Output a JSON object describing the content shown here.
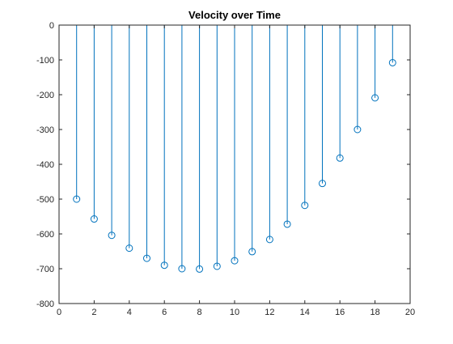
{
  "chart_data": {
    "type": "stem",
    "title": "Velocity over Time",
    "xlabel": "",
    "ylabel": "",
    "xlim": [
      0,
      20
    ],
    "ylim": [
      -800,
      0
    ],
    "xticks": [
      0,
      2,
      4,
      6,
      8,
      10,
      12,
      14,
      16,
      18,
      20
    ],
    "yticks": [
      0,
      -100,
      -200,
      -300,
      -400,
      -500,
      -600,
      -700,
      -800
    ],
    "grid": false,
    "legend": "none",
    "series": [
      {
        "color": "#0072BD",
        "marker": "circle-open",
        "x": [
          1,
          2,
          3,
          4,
          5,
          6,
          7,
          8,
          9,
          10,
          11,
          12,
          13,
          14,
          15,
          16,
          17,
          18,
          19
        ],
        "y": [
          -500,
          -557,
          -604,
          -641,
          -670,
          -690,
          -700,
          -701,
          -693,
          -677,
          -651,
          -616,
          -572,
          -518,
          -455,
          -382,
          -300,
          -209,
          -108
        ]
      }
    ]
  }
}
